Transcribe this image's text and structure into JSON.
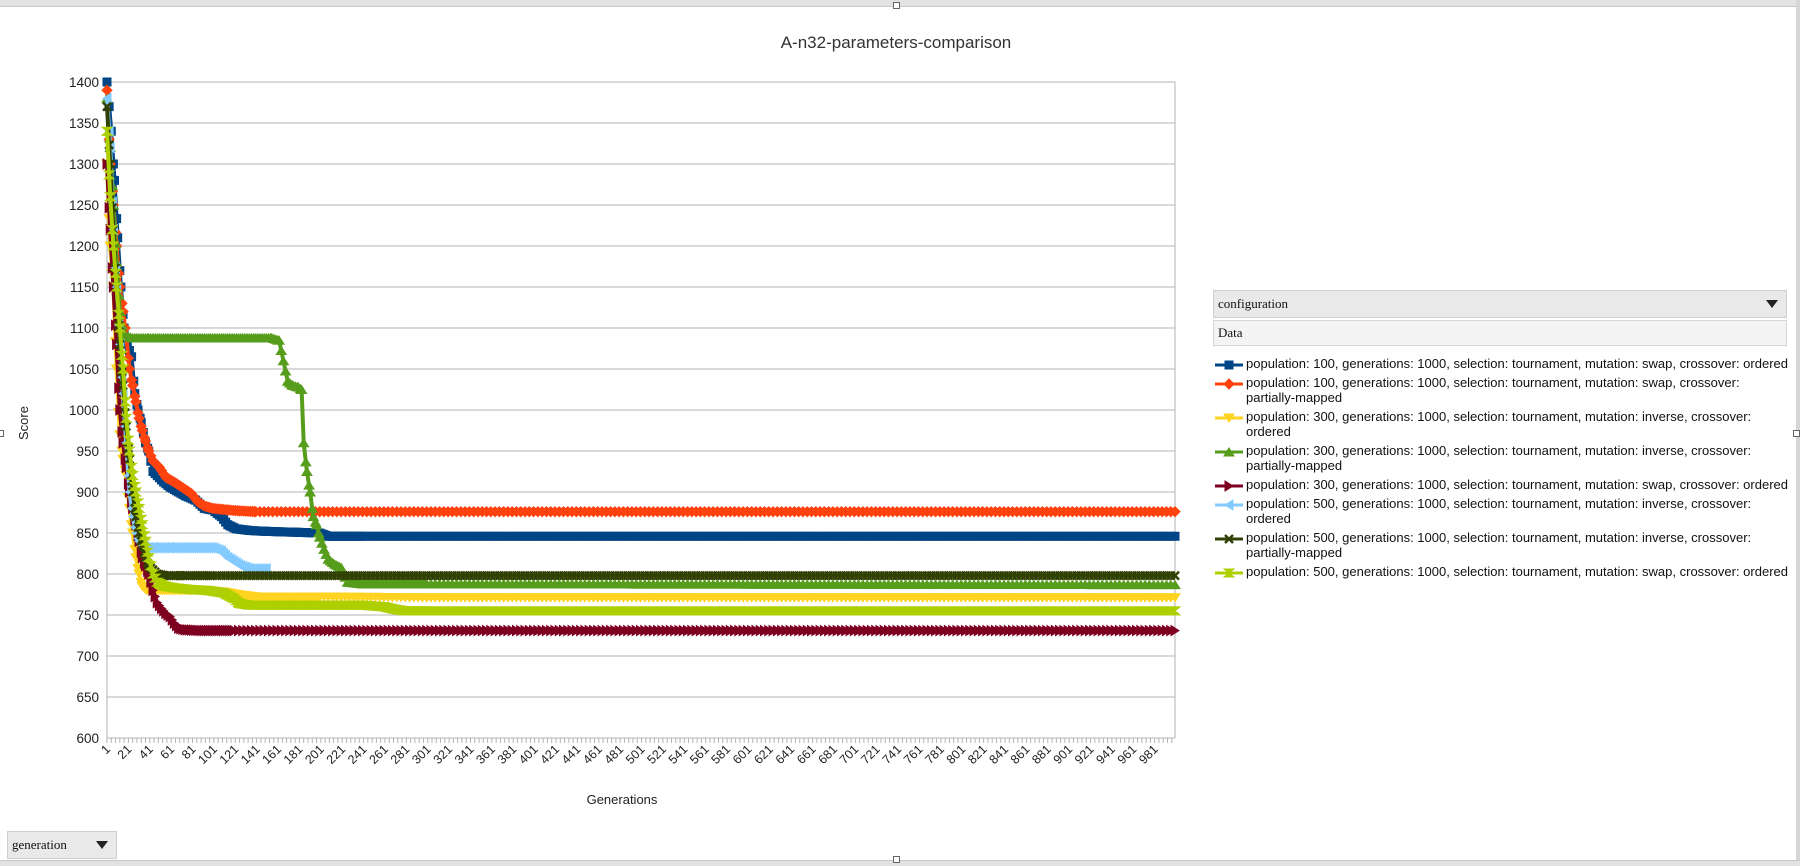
{
  "chart_data": {
    "type": "line",
    "title": "A-n32-parameters-comparison",
    "xlabel": "Generations",
    "ylabel": "Score",
    "ylim": [
      600,
      1400
    ],
    "yticks": [
      1400,
      1350,
      1300,
      1250,
      1200,
      1150,
      1100,
      1050,
      1000,
      950,
      900,
      850,
      800,
      750,
      700,
      650,
      600
    ],
    "xticks": [
      "1",
      "21",
      "41",
      "61",
      "81",
      "101",
      "121",
      "141",
      "161",
      "181",
      "201",
      "221",
      "241",
      "261",
      "281",
      "301",
      "321",
      "341",
      "361",
      "381",
      "401",
      "421",
      "441",
      "461",
      "481",
      "501",
      "521",
      "541",
      "561",
      "581",
      "601",
      "621",
      "641",
      "661",
      "681",
      "701",
      "721",
      "741",
      "761",
      "781",
      "801",
      "821",
      "841",
      "861",
      "881",
      "901",
      "921",
      "941",
      "961",
      "981"
    ],
    "x_range": [
      1,
      1000
    ],
    "grid": "horizontal",
    "legend_position": "right",
    "series": [
      {
        "name": "population: 100, generations: 1000, selection: tournament, mutation: swap, crossover: ordered",
        "color": "#004586",
        "marker": "square",
        "points": [
          [
            1,
            1400
          ],
          [
            5,
            1340
          ],
          [
            8,
            1280
          ],
          [
            11,
            1210
          ],
          [
            14,
            1150
          ],
          [
            17,
            1100
          ],
          [
            20,
            1080
          ],
          [
            24,
            1065
          ],
          [
            27,
            1020
          ],
          [
            30,
            1000
          ],
          [
            33,
            985
          ],
          [
            37,
            960
          ],
          [
            40,
            950
          ],
          [
            44,
            925
          ],
          [
            48,
            920
          ],
          [
            54,
            912
          ],
          [
            60,
            906
          ],
          [
            68,
            900
          ],
          [
            75,
            895
          ],
          [
            84,
            890
          ],
          [
            92,
            880
          ],
          [
            100,
            878
          ],
          [
            108,
            870
          ],
          [
            114,
            860
          ],
          [
            122,
            855
          ],
          [
            135,
            853
          ],
          [
            150,
            852
          ],
          [
            175,
            851
          ],
          [
            200,
            850
          ],
          [
            208,
            846
          ],
          [
            240,
            846
          ],
          [
            1000,
            846
          ]
        ]
      },
      {
        "name": "population: 100, generations: 1000, selection: tournament, mutation: swap, crossover: partially-mapped",
        "color": "#ff420e",
        "marker": "diamond",
        "points": [
          [
            1,
            1390
          ],
          [
            4,
            1300
          ],
          [
            7,
            1250
          ],
          [
            10,
            1200
          ],
          [
            13,
            1150
          ],
          [
            16,
            1120
          ],
          [
            19,
            1090
          ],
          [
            22,
            1050
          ],
          [
            25,
            1030
          ],
          [
            28,
            1010
          ],
          [
            31,
            990
          ],
          [
            34,
            975
          ],
          [
            37,
            962
          ],
          [
            40,
            950
          ],
          [
            44,
            938
          ],
          [
            50,
            930
          ],
          [
            56,
            918
          ],
          [
            64,
            912
          ],
          [
            72,
            905
          ],
          [
            80,
            898
          ],
          [
            86,
            888
          ],
          [
            92,
            883
          ],
          [
            100,
            880
          ],
          [
            115,
            878
          ],
          [
            125,
            877
          ],
          [
            140,
            876
          ],
          [
            1000,
            876
          ]
        ]
      },
      {
        "name": "population: 300, generations: 1000, selection: tournament, mutation: inverse, crossover: ordered",
        "color": "#ffd320",
        "marker": "triangle-down",
        "points": [
          [
            1,
            1300
          ],
          [
            4,
            1200
          ],
          [
            7,
            1150
          ],
          [
            10,
            1050
          ],
          [
            13,
            970
          ],
          [
            16,
            940
          ],
          [
            19,
            920
          ],
          [
            22,
            880
          ],
          [
            25,
            850
          ],
          [
            28,
            820
          ],
          [
            31,
            800
          ],
          [
            34,
            785
          ],
          [
            38,
            780
          ],
          [
            45,
            780
          ],
          [
            55,
            780
          ],
          [
            70,
            780
          ],
          [
            90,
            780
          ],
          [
            110,
            778
          ],
          [
            122,
            775
          ],
          [
            140,
            772
          ],
          [
            200,
            772
          ],
          [
            300,
            771
          ],
          [
            1000,
            771
          ]
        ]
      },
      {
        "name": "population: 300, generations: 1000, selection: tournament, mutation: inverse, crossover: partially-mapped",
        "color": "#579d1c",
        "marker": "triangle-up",
        "points": [
          [
            1,
            1380
          ],
          [
            4,
            1320
          ],
          [
            7,
            1250
          ],
          [
            10,
            1180
          ],
          [
            13,
            1120
          ],
          [
            16,
            1095
          ],
          [
            19,
            1090
          ],
          [
            25,
            1088
          ],
          [
            40,
            1088
          ],
          [
            80,
            1088
          ],
          [
            120,
            1088
          ],
          [
            155,
            1088
          ],
          [
            162,
            1085
          ],
          [
            166,
            1060
          ],
          [
            170,
            1035
          ],
          [
            175,
            1030
          ],
          [
            180,
            1028
          ],
          [
            183,
            1025
          ],
          [
            185,
            960
          ],
          [
            188,
            925
          ],
          [
            191,
            900
          ],
          [
            194,
            870
          ],
          [
            197,
            860
          ],
          [
            200,
            845
          ],
          [
            204,
            830
          ],
          [
            208,
            818
          ],
          [
            214,
            812
          ],
          [
            220,
            808
          ],
          [
            226,
            790
          ],
          [
            240,
            788
          ],
          [
            300,
            788
          ],
          [
            1000,
            787
          ]
        ]
      },
      {
        "name": "population: 300, generations: 1000, selection: tournament, mutation: swap, crossover: ordered",
        "color": "#7e0021",
        "marker": "triangle-right",
        "points": [
          [
            1,
            1300
          ],
          [
            4,
            1220
          ],
          [
            7,
            1150
          ],
          [
            10,
            1080
          ],
          [
            13,
            1000
          ],
          [
            16,
            960
          ],
          [
            19,
            930
          ],
          [
            22,
            900
          ],
          [
            25,
            880
          ],
          [
            28,
            860
          ],
          [
            31,
            840
          ],
          [
            34,
            820
          ],
          [
            37,
            810
          ],
          [
            40,
            800
          ],
          [
            44,
            780
          ],
          [
            48,
            765
          ],
          [
            52,
            758
          ],
          [
            56,
            752
          ],
          [
            60,
            748
          ],
          [
            64,
            740
          ],
          [
            68,
            734
          ],
          [
            74,
            732
          ],
          [
            90,
            731
          ],
          [
            120,
            731
          ],
          [
            200,
            731
          ],
          [
            1000,
            731
          ]
        ]
      },
      {
        "name": "population: 500, generations: 1000, selection: tournament, mutation: inverse, crossover: ordered",
        "color": "#83caff",
        "marker": "triangle-left",
        "points": [
          [
            1,
            1380
          ],
          [
            4,
            1320
          ],
          [
            7,
            1220
          ],
          [
            10,
            1150
          ],
          [
            13,
            1080
          ],
          [
            16,
            1020
          ],
          [
            19,
            960
          ],
          [
            22,
            900
          ],
          [
            25,
            870
          ],
          [
            28,
            850
          ],
          [
            31,
            840
          ],
          [
            34,
            835
          ],
          [
            38,
            832
          ],
          [
            45,
            832
          ],
          [
            60,
            832
          ],
          [
            80,
            832
          ],
          [
            100,
            832
          ],
          [
            108,
            828
          ],
          [
            114,
            820
          ],
          [
            120,
            815
          ],
          [
            126,
            810
          ],
          [
            135,
            806
          ],
          [
            150,
            806
          ]
        ]
      },
      {
        "name": "population: 500, generations: 1000, selection: tournament, mutation: inverse, crossover: partially-mapped",
        "color": "#314004",
        "marker": "x",
        "points": [
          [
            1,
            1370
          ],
          [
            4,
            1300
          ],
          [
            7,
            1220
          ],
          [
            10,
            1150
          ],
          [
            13,
            1080
          ],
          [
            16,
            1030
          ],
          [
            19,
            980
          ],
          [
            22,
            940
          ],
          [
            25,
            900
          ],
          [
            28,
            870
          ],
          [
            31,
            850
          ],
          [
            34,
            835
          ],
          [
            37,
            820
          ],
          [
            40,
            810
          ],
          [
            44,
            805
          ],
          [
            48,
            800
          ],
          [
            55,
            798
          ],
          [
            70,
            798
          ],
          [
            100,
            798
          ],
          [
            200,
            798
          ],
          [
            400,
            798
          ],
          [
            1000,
            798
          ]
        ]
      },
      {
        "name": "population: 500, generations: 1000, selection: tournament, mutation: swap, crossover: ordered",
        "color": "#aecf00",
        "marker": "hourglass",
        "points": [
          [
            1,
            1340
          ],
          [
            4,
            1260
          ],
          [
            7,
            1200
          ],
          [
            10,
            1150
          ],
          [
            13,
            1100
          ],
          [
            16,
            1050
          ],
          [
            19,
            990
          ],
          [
            22,
            950
          ],
          [
            25,
            920
          ],
          [
            28,
            900
          ],
          [
            31,
            880
          ],
          [
            34,
            860
          ],
          [
            37,
            840
          ],
          [
            40,
            820
          ],
          [
            44,
            800
          ],
          [
            48,
            790
          ],
          [
            55,
            785
          ],
          [
            65,
            783
          ],
          [
            80,
            781
          ],
          [
            95,
            780
          ],
          [
            110,
            777
          ],
          [
            120,
            770
          ],
          [
            125,
            764
          ],
          [
            135,
            762
          ],
          [
            150,
            762
          ],
          [
            200,
            762
          ],
          [
            240,
            762
          ],
          [
            260,
            760
          ],
          [
            270,
            757
          ],
          [
            280,
            755
          ],
          [
            300,
            755
          ],
          [
            1000,
            755
          ]
        ]
      }
    ]
  },
  "pivot": {
    "configuration_label": "configuration",
    "data_label": "Data",
    "generation_label": "generation"
  }
}
